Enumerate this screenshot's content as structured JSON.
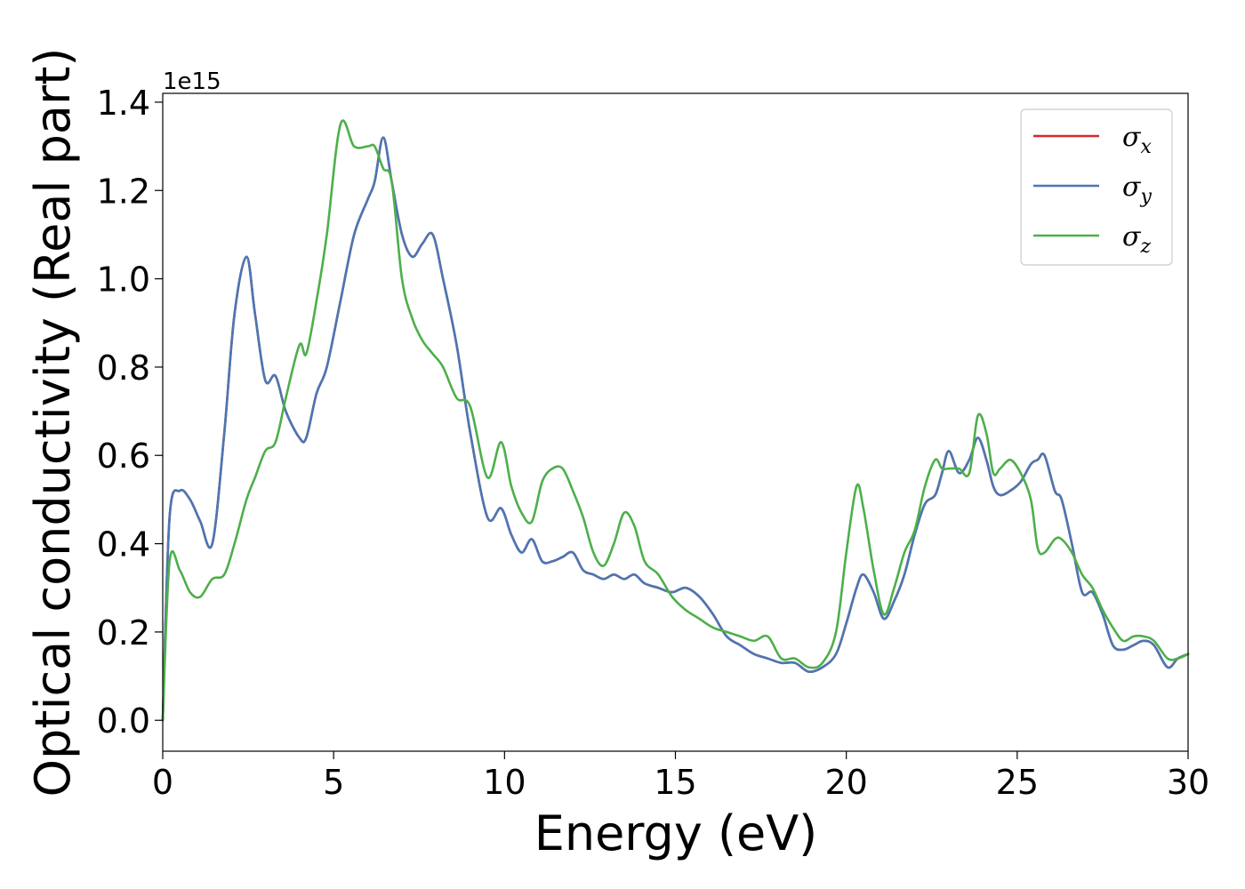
{
  "chart_data": {
    "type": "line",
    "xlabel": "Energy (eV)",
    "ylabel": "Optical conductivity (Real part)",
    "offset_label": "1e15",
    "xlim": [
      0,
      30
    ],
    "ylim": [
      -0.07,
      1.42
    ],
    "xticks": [
      0,
      5,
      10,
      15,
      20,
      25,
      30
    ],
    "xtick_labels": [
      "0",
      "5",
      "10",
      "15",
      "20",
      "25",
      "30"
    ],
    "yticks": [
      0.0,
      0.2,
      0.4,
      0.6,
      0.8,
      1.0,
      1.2,
      1.4
    ],
    "ytick_labels": [
      "0.0",
      "0.2",
      "0.4",
      "0.6",
      "0.8",
      "1.0",
      "1.2",
      "1.4"
    ],
    "grid": false,
    "legend_position": "top-right",
    "x": [
      0,
      0.2,
      0.5,
      0.8,
      1.1,
      1.45,
      1.8,
      2.1,
      2.45,
      2.7,
      3.0,
      3.3,
      3.6,
      4.0,
      4.2,
      4.5,
      4.8,
      5.2,
      5.6,
      6.0,
      6.2,
      6.45,
      6.7,
      7.0,
      7.3,
      7.6,
      7.9,
      8.2,
      8.6,
      9.0,
      9.5,
      9.9,
      10.2,
      10.5,
      10.8,
      11.1,
      11.4,
      11.7,
      12.0,
      12.3,
      12.6,
      12.9,
      13.2,
      13.5,
      13.8,
      14.1,
      14.5,
      14.9,
      15.3,
      15.7,
      16.1,
      16.5,
      16.9,
      17.3,
      17.7,
      18.1,
      18.5,
      18.9,
      19.3,
      19.7,
      20.0,
      20.3,
      20.5,
      20.8,
      21.1,
      21.4,
      21.7,
      22.0,
      22.3,
      22.6,
      22.8,
      23.0,
      23.3,
      23.6,
      23.85,
      24.1,
      24.3,
      24.5,
      24.8,
      25.1,
      25.4,
      25.6,
      25.8,
      26.1,
      26.3,
      26.6,
      26.9,
      27.2,
      27.5,
      27.8,
      28.1,
      28.4,
      28.7,
      29.0,
      29.4,
      29.7,
      30.0
    ],
    "series": [
      {
        "name": "σx",
        "label_base": "σ",
        "label_sub": "x",
        "color": "#d62728",
        "values": [
          0.0,
          0.46,
          0.52,
          0.5,
          0.45,
          0.4,
          0.65,
          0.92,
          1.05,
          0.92,
          0.77,
          0.78,
          0.7,
          0.64,
          0.64,
          0.74,
          0.8,
          0.95,
          1.1,
          1.18,
          1.22,
          1.32,
          1.22,
          1.1,
          1.05,
          1.08,
          1.1,
          1.0,
          0.85,
          0.65,
          0.46,
          0.48,
          0.42,
          0.38,
          0.41,
          0.36,
          0.36,
          0.37,
          0.38,
          0.34,
          0.33,
          0.32,
          0.33,
          0.32,
          0.33,
          0.31,
          0.3,
          0.29,
          0.3,
          0.28,
          0.24,
          0.19,
          0.17,
          0.15,
          0.14,
          0.13,
          0.13,
          0.11,
          0.12,
          0.15,
          0.22,
          0.3,
          0.33,
          0.29,
          0.23,
          0.27,
          0.33,
          0.42,
          0.49,
          0.51,
          0.56,
          0.61,
          0.56,
          0.59,
          0.64,
          0.59,
          0.53,
          0.51,
          0.52,
          0.54,
          0.58,
          0.59,
          0.6,
          0.52,
          0.5,
          0.4,
          0.29,
          0.29,
          0.24,
          0.17,
          0.16,
          0.17,
          0.18,
          0.17,
          0.12,
          0.14,
          0.15
        ]
      },
      {
        "name": "σy",
        "label_base": "σ",
        "label_sub": "y",
        "color": "#4a77b4",
        "values": [
          0.0,
          0.46,
          0.52,
          0.5,
          0.45,
          0.4,
          0.65,
          0.92,
          1.05,
          0.92,
          0.77,
          0.78,
          0.7,
          0.64,
          0.64,
          0.74,
          0.8,
          0.95,
          1.1,
          1.18,
          1.22,
          1.32,
          1.22,
          1.1,
          1.05,
          1.08,
          1.1,
          1.0,
          0.85,
          0.65,
          0.46,
          0.48,
          0.42,
          0.38,
          0.41,
          0.36,
          0.36,
          0.37,
          0.38,
          0.34,
          0.33,
          0.32,
          0.33,
          0.32,
          0.33,
          0.31,
          0.3,
          0.29,
          0.3,
          0.28,
          0.24,
          0.19,
          0.17,
          0.15,
          0.14,
          0.13,
          0.13,
          0.11,
          0.12,
          0.15,
          0.22,
          0.3,
          0.33,
          0.29,
          0.23,
          0.27,
          0.33,
          0.42,
          0.49,
          0.51,
          0.56,
          0.61,
          0.56,
          0.59,
          0.64,
          0.59,
          0.53,
          0.51,
          0.52,
          0.54,
          0.58,
          0.59,
          0.6,
          0.52,
          0.5,
          0.4,
          0.29,
          0.29,
          0.24,
          0.17,
          0.16,
          0.17,
          0.18,
          0.17,
          0.12,
          0.14,
          0.15
        ]
      },
      {
        "name": "σz",
        "label_base": "σ",
        "label_sub": "z",
        "color": "#4daf4a",
        "values": [
          0.0,
          0.36,
          0.34,
          0.29,
          0.28,
          0.32,
          0.33,
          0.4,
          0.5,
          0.55,
          0.61,
          0.63,
          0.73,
          0.85,
          0.83,
          0.95,
          1.1,
          1.35,
          1.3,
          1.3,
          1.3,
          1.25,
          1.22,
          1.0,
          0.91,
          0.86,
          0.83,
          0.8,
          0.73,
          0.71,
          0.55,
          0.63,
          0.53,
          0.47,
          0.45,
          0.54,
          0.57,
          0.57,
          0.52,
          0.46,
          0.38,
          0.35,
          0.4,
          0.47,
          0.44,
          0.36,
          0.33,
          0.28,
          0.25,
          0.23,
          0.21,
          0.2,
          0.19,
          0.18,
          0.19,
          0.14,
          0.14,
          0.12,
          0.13,
          0.2,
          0.38,
          0.53,
          0.48,
          0.34,
          0.24,
          0.3,
          0.38,
          0.43,
          0.53,
          0.59,
          0.57,
          0.57,
          0.57,
          0.56,
          0.69,
          0.65,
          0.56,
          0.57,
          0.59,
          0.56,
          0.5,
          0.39,
          0.38,
          0.41,
          0.41,
          0.38,
          0.33,
          0.3,
          0.25,
          0.21,
          0.18,
          0.19,
          0.19,
          0.18,
          0.14,
          0.14,
          0.15
        ]
      }
    ]
  }
}
